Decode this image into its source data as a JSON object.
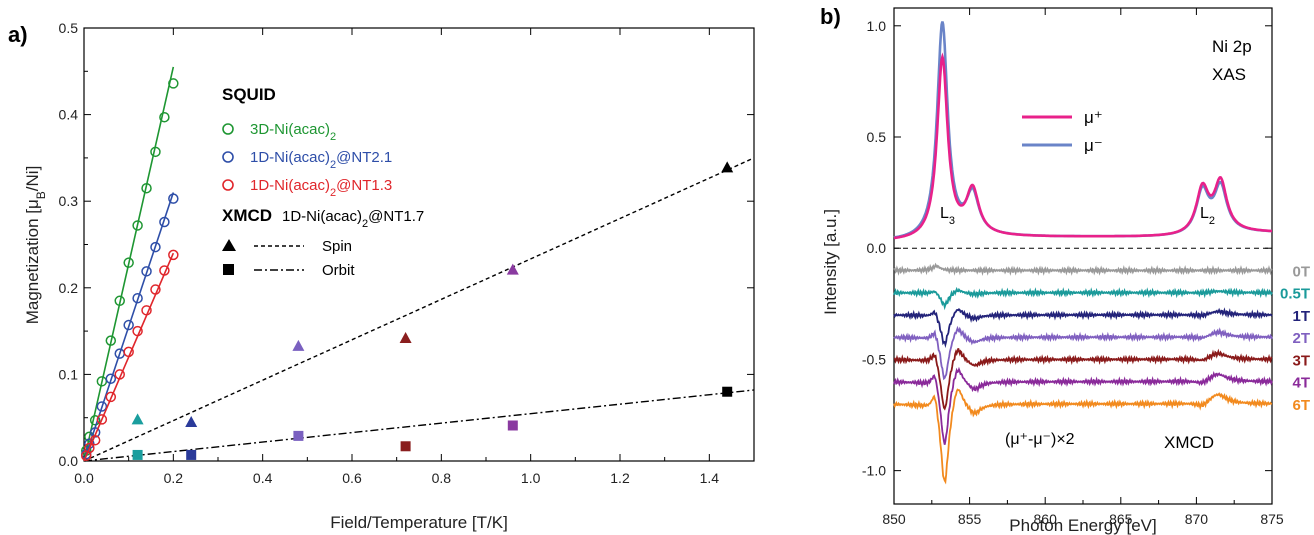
{
  "chart_data": [
    {
      "panel_label": "a)",
      "type": "scatter",
      "xlabel": "Field/Temperature [T/K]",
      "ylabel": "Magnetization [μB/Ni]",
      "xlim": [
        0,
        1.5
      ],
      "ylim": [
        0,
        0.5
      ],
      "xticks": [
        "0.0",
        "0.2",
        "0.4",
        "0.6",
        "0.8",
        "1.0",
        "1.2",
        "1.4"
      ],
      "yticks": [
        "0.0",
        "0.1",
        "0.2",
        "0.3",
        "0.4",
        "0.5"
      ],
      "legend_title_squid": "SQUID",
      "legend_title_xmcd": "XMCD",
      "legend_xmcd_sample": "1D-Ni(acac)2@NT1.7",
      "legend_spin": "Spin",
      "legend_orbit": "Orbit",
      "series": [
        {
          "name": "3D-Ni(acac)2",
          "color": "#1e9632",
          "marker": "open-circle",
          "x": [
            0.005,
            0.012,
            0.025,
            0.04,
            0.06,
            0.08,
            0.1,
            0.12,
            0.14,
            0.16,
            0.18,
            0.2
          ],
          "y": [
            0.012,
            0.028,
            0.047,
            0.092,
            0.139,
            0.185,
            0.229,
            0.272,
            0.315,
            0.357,
            0.397,
            0.436
          ],
          "fit": [
            [
              0,
              0
            ],
            [
              0.2,
              0.455
            ]
          ]
        },
        {
          "name": "1D-Ni(acac)2@NT2.1",
          "color": "#2e4ea8",
          "marker": "open-circle",
          "x": [
            0.005,
            0.012,
            0.025,
            0.04,
            0.06,
            0.08,
            0.1,
            0.12,
            0.14,
            0.16,
            0.18,
            0.2
          ],
          "y": [
            0.008,
            0.02,
            0.033,
            0.063,
            0.095,
            0.124,
            0.157,
            0.188,
            0.219,
            0.247,
            0.276,
            0.303
          ],
          "fit": [
            [
              0,
              0
            ],
            [
              0.2,
              0.31
            ]
          ]
        },
        {
          "name": "1D-Ni(acac)2@NT1.3",
          "color": "#e0262b",
          "marker": "open-circle",
          "x": [
            0.005,
            0.012,
            0.025,
            0.04,
            0.06,
            0.08,
            0.1,
            0.12,
            0.14,
            0.16,
            0.18,
            0.2
          ],
          "y": [
            0.006,
            0.015,
            0.024,
            0.048,
            0.074,
            0.1,
            0.126,
            0.15,
            0.174,
            0.198,
            0.22,
            0.238
          ],
          "fit": [
            [
              0,
              0
            ],
            [
              0.2,
              0.24
            ]
          ]
        }
      ],
      "xmcd_spin": [
        {
          "x": 0.12,
          "y": 0.048,
          "color": "#1a9e9e"
        },
        {
          "x": 0.24,
          "y": 0.045,
          "color": "#2a3a9a"
        },
        {
          "x": 0.48,
          "y": 0.133,
          "color": "#7a60c0"
        },
        {
          "x": 0.72,
          "y": 0.142,
          "color": "#8a1e1e"
        },
        {
          "x": 0.96,
          "y": 0.221,
          "color": "#8a3aa0"
        },
        {
          "x": 1.44,
          "y": 0.339,
          "color": "#000000"
        }
      ],
      "xmcd_orbit": [
        {
          "x": 0.12,
          "y": 0.007,
          "color": "#1a9e9e"
        },
        {
          "x": 0.24,
          "y": 0.007,
          "color": "#2a3a9a"
        },
        {
          "x": 0.48,
          "y": 0.029,
          "color": "#7a60c0"
        },
        {
          "x": 0.72,
          "y": 0.017,
          "color": "#8a1e1e"
        },
        {
          "x": 0.96,
          "y": 0.041,
          "color": "#8a3aa0"
        },
        {
          "x": 1.44,
          "y": 0.08,
          "color": "#000000"
        }
      ],
      "spin_fit": [
        [
          0,
          0
        ],
        [
          1.5,
          0.35
        ]
      ],
      "orbit_fit": [
        [
          0,
          0
        ],
        [
          1.5,
          0.082
        ]
      ]
    },
    {
      "panel_label": "b)",
      "type": "line",
      "xlabel": "Photon Energy [eV]",
      "ylabel": "Intensity [a.u.]",
      "xlim": [
        850,
        875
      ],
      "ylim": [
        -1.15,
        1.08
      ],
      "xticks": [
        "850",
        "855",
        "860",
        "865",
        "870",
        "875"
      ],
      "yticks": [
        "-1.0",
        "-0.5",
        "0.0",
        "0.5",
        "1.0"
      ],
      "annotations": {
        "ni2p": "Ni 2p",
        "xas": "XAS",
        "xmcd": "XMCD",
        "l3": "L",
        "l2": "L",
        "diff": "(μ⁺-μ⁻)×2"
      },
      "xas": [
        {
          "name": "μ⁺",
          "color": "#e8218a",
          "peak_l3": 0.81,
          "shoulder": 0.2,
          "peak_l2a": 0.2,
          "peak_l2b": 0.22
        },
        {
          "name": "μ⁻",
          "color": "#6a84c8",
          "peak_l3": 0.97,
          "shoulder": 0.18,
          "peak_l2a": 0.19,
          "peak_l2b": 0.2
        }
      ],
      "xmcd": [
        {
          "label": "0T",
          "color": "#999999",
          "offset": -0.1,
          "scale": 0.0
        },
        {
          "label": "0.5T",
          "color": "#1a9a9a",
          "offset": -0.2,
          "scale": 0.06
        },
        {
          "label": "1T",
          "color": "#23237a",
          "offset": -0.3,
          "scale": 0.14
        },
        {
          "label": "2T",
          "color": "#8060c0",
          "offset": -0.4,
          "scale": 0.2
        },
        {
          "label": "3T",
          "color": "#8a1a1a",
          "offset": -0.5,
          "scale": 0.24
        },
        {
          "label": "4T",
          "color": "#8a2a9a",
          "offset": -0.6,
          "scale": 0.3
        },
        {
          "label": "6T",
          "color": "#f28a1e",
          "offset": -0.7,
          "scale": 0.38
        }
      ]
    }
  ]
}
